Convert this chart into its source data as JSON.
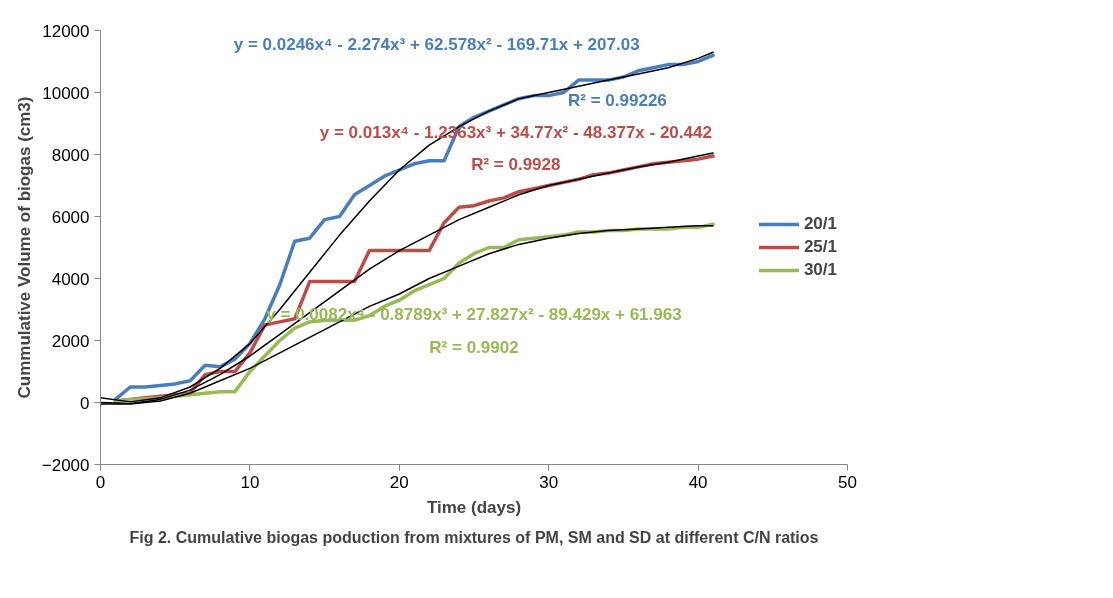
{
  "chart_data": {
    "type": "line",
    "title": "Fig 2. Cumulative biogas poduction from mixtures of PM, SM and SD at different C/N ratios",
    "xlabel": "Time (days)",
    "ylabel": "Cummulative Volume of biogas (cm3)",
    "xlim": [
      0,
      50
    ],
    "xticks": [
      0,
      10,
      20,
      30,
      40,
      50
    ],
    "ylim": [
      -2000,
      12000
    ],
    "yticks": [
      -2000,
      0,
      2000,
      4000,
      6000,
      8000,
      10000,
      12000
    ],
    "grid": false,
    "legend": "right",
    "marker": "none",
    "line_style": "solid",
    "x": [
      1,
      2,
      3,
      4,
      5,
      6,
      7,
      8,
      9,
      10,
      11,
      12,
      13,
      14,
      15,
      16,
      17,
      18,
      19,
      20,
      21,
      22,
      23,
      24,
      25,
      26,
      27,
      28,
      29,
      30,
      31,
      32,
      33,
      34,
      35,
      36,
      37,
      38,
      39,
      40,
      41
    ],
    "series": [
      {
        "name": "20/1",
        "color": "#4a7ebb",
        "values": [
          100,
          500,
          500,
          550,
          600,
          700,
          1200,
          1150,
          1400,
          1900,
          2700,
          3800,
          5200,
          5300,
          5900,
          6000,
          6700,
          7000,
          7300,
          7500,
          7700,
          7800,
          7800,
          8900,
          9200,
          9400,
          9600,
          9800,
          9900,
          9900,
          10000,
          10400,
          10400,
          10400,
          10500,
          10700,
          10800,
          10900,
          10900,
          11000,
          11200
        ]
      },
      {
        "name": "25/1",
        "color": "#be4b48",
        "values": [
          50,
          100,
          150,
          200,
          250,
          300,
          900,
          1000,
          1000,
          1600,
          2500,
          2600,
          2700,
          3900,
          3900,
          3900,
          3900,
          4900,
          4900,
          4900,
          4900,
          4900,
          5800,
          6300,
          6350,
          6500,
          6600,
          6800,
          6900,
          7000,
          7100,
          7200,
          7350,
          7400,
          7500,
          7600,
          7700,
          7750,
          7800,
          7850,
          7950
        ]
      },
      {
        "name": "30/1",
        "color": "#98b954",
        "values": [
          50,
          100,
          120,
          150,
          200,
          250,
          300,
          350,
          350,
          1000,
          1500,
          2000,
          2400,
          2600,
          2650,
          2650,
          2650,
          2800,
          3100,
          3300,
          3600,
          3800,
          4000,
          4500,
          4800,
          5000,
          5000,
          5250,
          5300,
          5350,
          5400,
          5500,
          5500,
          5550,
          5550,
          5600,
          5600,
          5600,
          5650,
          5650,
          5750
        ]
      },
      {
        "type": "line",
        "color": "#000000",
        "x": [
          0,
          2,
          4,
          6,
          8,
          10,
          12,
          14,
          16,
          18,
          20,
          22,
          24,
          26,
          28,
          30,
          32,
          34,
          36,
          38,
          40,
          41
        ],
        "values": [
          150,
          20,
          150,
          500,
          1100,
          1900,
          3000,
          4200,
          5400,
          6500,
          7500,
          8300,
          8900,
          9400,
          9800,
          10000,
          10200,
          10400,
          10600,
          10800,
          11100,
          11300
        ]
      },
      {
        "type": "line",
        "color": "#000000",
        "x": [
          0,
          2,
          4,
          6,
          8,
          10,
          12,
          14,
          16,
          18,
          20,
          22,
          24,
          26,
          28,
          30,
          32,
          34,
          36,
          38,
          40,
          41
        ],
        "values": [
          0,
          -30,
          100,
          400,
          900,
          1500,
          2200,
          2900,
          3600,
          4300,
          4900,
          5400,
          5900,
          6300,
          6700,
          7000,
          7200,
          7400,
          7600,
          7750,
          7950,
          8050
        ]
      },
      {
        "type": "line",
        "color": "#000000",
        "x": [
          0,
          2,
          4,
          6,
          8,
          10,
          12,
          14,
          16,
          18,
          20,
          22,
          24,
          26,
          28,
          30,
          32,
          34,
          36,
          38,
          40,
          41
        ],
        "values": [
          -50,
          -50,
          50,
          300,
          700,
          1100,
          1600,
          2100,
          2600,
          3100,
          3500,
          4000,
          4400,
          4800,
          5100,
          5300,
          5450,
          5550,
          5600,
          5650,
          5700,
          5700
        ]
      }
    ],
    "annotations": [
      "y = 0.0246x⁴ - 2.274x³ + 62.578x² - 169.71x + 207.03",
      "R² = 0.99226",
      "y = 0.013x⁴ - 1.2363x³ + 34.77x² - 48.377x - 20.442",
      "R² = 0.9928",
      "y = 0.0082x⁴ - 0.8789x³ + 27.827x² - 89.429x + 61.963",
      "R² = 0.9902"
    ]
  }
}
